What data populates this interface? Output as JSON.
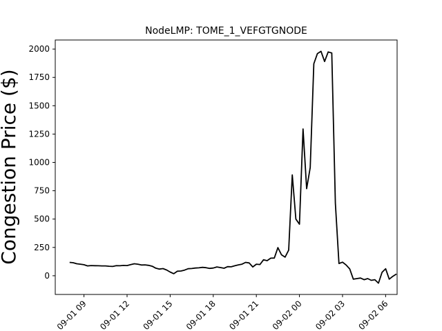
{
  "chart_data": {
    "type": "line",
    "title": "NodeLMP: TOME_1_VEFGTGNODE",
    "xlabel": "",
    "ylabel": "Congestion Price ($)",
    "ylim": [
      -165,
      2080
    ],
    "yticks": [
      0,
      250,
      500,
      750,
      1000,
      1250,
      1500,
      1750,
      2000
    ],
    "xlim": [
      7.0,
      30.8
    ],
    "xticks": [
      {
        "value": 9,
        "label": "09-01 09"
      },
      {
        "value": 12,
        "label": "09-01 12"
      },
      {
        "value": 15,
        "label": "09-01 15"
      },
      {
        "value": 18,
        "label": "09-01 18"
      },
      {
        "value": 21,
        "label": "09-01 21"
      },
      {
        "value": 24,
        "label": "09-02 00"
      },
      {
        "value": 27,
        "label": "09-02 03"
      },
      {
        "value": 30,
        "label": "09-02 06"
      }
    ],
    "grid": false,
    "line_color": "#000000",
    "series": [
      {
        "name": "",
        "x": [
          8.0,
          8.25,
          8.5,
          8.75,
          9.0,
          9.25,
          9.5,
          9.75,
          10.0,
          10.25,
          10.5,
          10.75,
          11.0,
          11.25,
          11.5,
          11.75,
          12.0,
          12.25,
          12.5,
          12.75,
          13.0,
          13.25,
          13.5,
          13.75,
          14.0,
          14.25,
          14.5,
          14.75,
          15.0,
          15.25,
          15.5,
          15.75,
          16.0,
          16.25,
          16.5,
          16.75,
          17.0,
          17.25,
          17.5,
          17.75,
          18.0,
          18.25,
          18.5,
          18.75,
          19.0,
          19.25,
          19.5,
          19.75,
          20.0,
          20.25,
          20.5,
          20.75,
          21.0,
          21.25,
          21.5,
          21.75,
          22.0,
          22.25,
          22.5,
          22.75,
          23.0,
          23.25,
          23.5,
          23.75,
          24.0,
          24.25,
          24.5,
          24.75,
          25.0,
          25.25,
          25.5,
          25.75,
          26.0,
          26.25,
          26.5,
          26.75,
          27.0,
          27.25,
          27.5,
          27.75,
          28.0,
          28.25,
          28.5,
          28.75,
          29.0,
          29.25,
          29.5,
          29.75,
          30.0,
          30.25,
          30.5,
          30.75
        ],
        "values": [
          118,
          115,
          106,
          102,
          97,
          87,
          90,
          89,
          88,
          87,
          87,
          84,
          82,
          89,
          88,
          91,
          90,
          98,
          106,
          102,
          95,
          96,
          92,
          84,
          67,
          59,
          63,
          51,
          33,
          18,
          40,
          42,
          50,
          62,
          64,
          68,
          70,
          74,
          71,
          65,
          68,
          78,
          72,
          66,
          80,
          79,
          88,
          96,
          102,
          118,
          113,
          78,
          102,
          99,
          141,
          133,
          155,
          156,
          248,
          185,
          164,
          226,
          890,
          500,
          455,
          1295,
          768,
          955,
          1870,
          1960,
          1980,
          1890,
          1975,
          1965,
          640,
          108,
          120,
          95,
          60,
          -30,
          -25,
          -20,
          -35,
          -25,
          -40,
          -35,
          -65,
          30,
          62,
          -30,
          -5,
          15
        ]
      }
    ]
  }
}
